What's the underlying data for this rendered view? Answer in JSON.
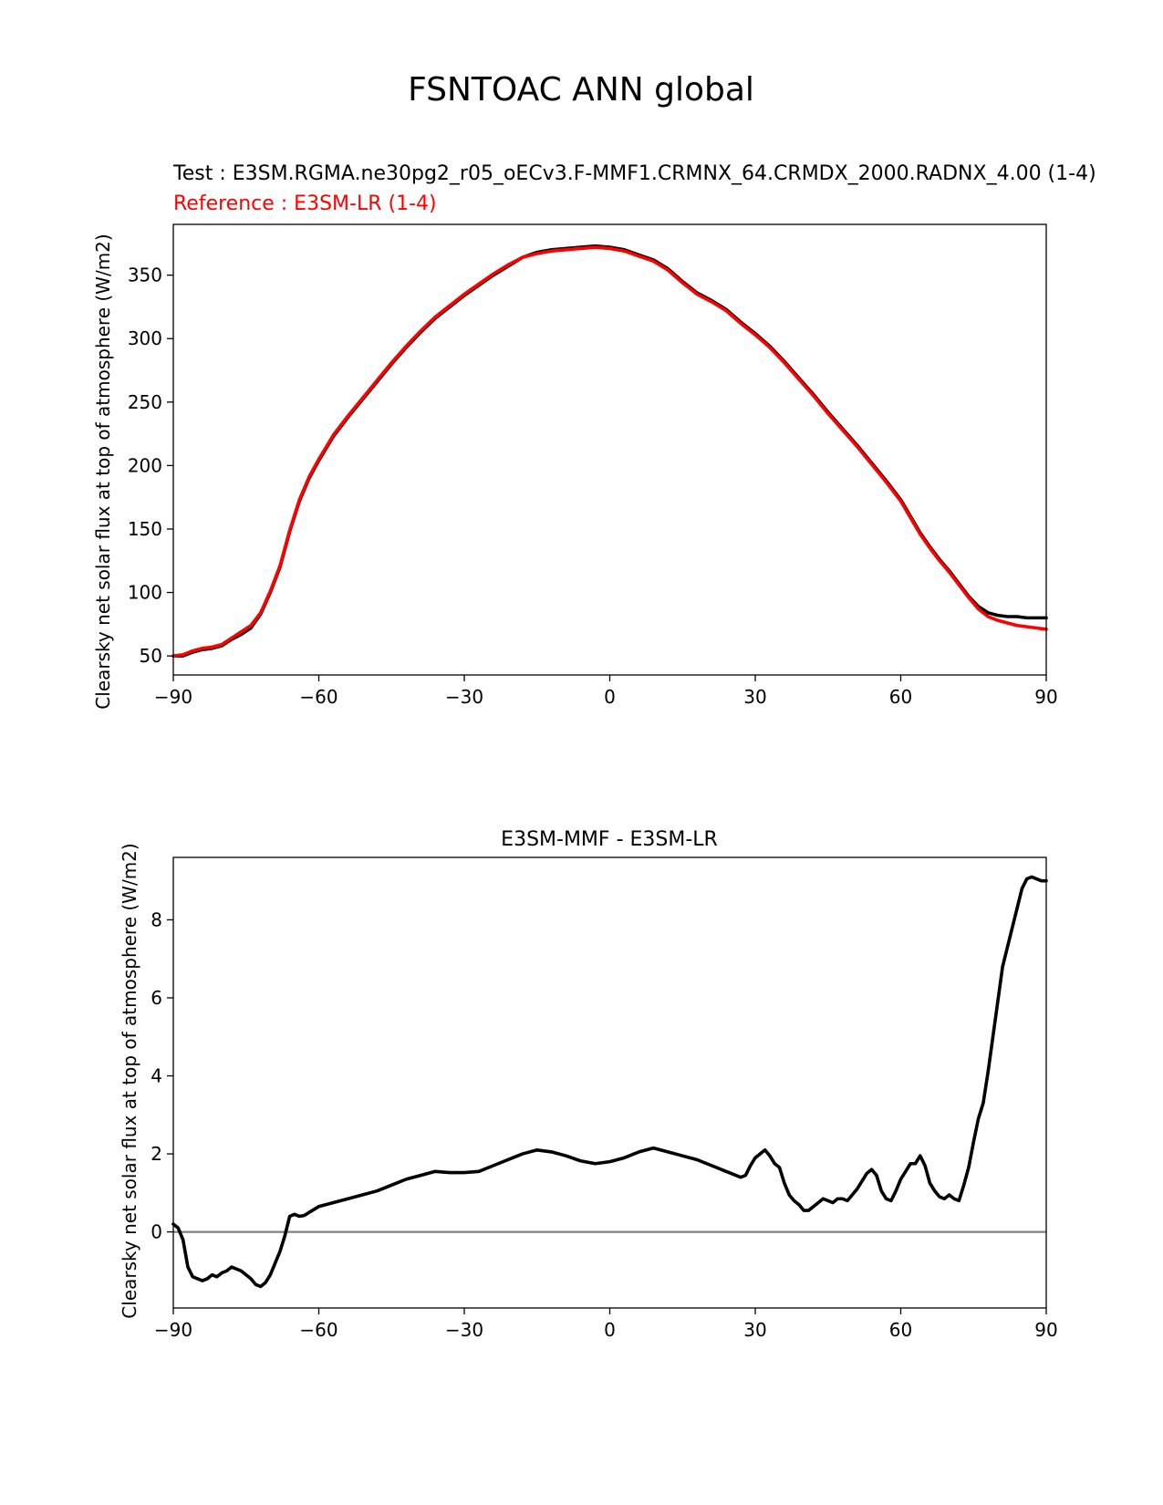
{
  "figure": {
    "title": "FSNTOAC ANN global"
  },
  "chart_data": [
    {
      "type": "line",
      "title_test": "Test : E3SM.RGMA.ne30pg2_r05_oECv3.F-MMF1.CRMNX_64.CRMDX_2000.RADNX_4.00 (1-4)",
      "title_reference": "Reference : E3SM-LR (1-4)",
      "xlabel": "",
      "ylabel": "Clearsky net solar flux at top of atmosphere (W/m2)",
      "xlim": [
        -90,
        90
      ],
      "ylim": [
        35,
        390
      ],
      "xticks": [
        -90,
        -60,
        -30,
        0,
        30,
        60,
        90
      ],
      "xtick_labels": [
        "−90",
        "−60",
        "−30",
        "0",
        "30",
        "60",
        "90"
      ],
      "yticks": [
        50,
        100,
        150,
        200,
        250,
        300,
        350
      ],
      "yticks_labels": [
        "50",
        "100",
        "150",
        "200",
        "250",
        "300",
        "350"
      ],
      "grid": false,
      "series": [
        {
          "role": "test",
          "color": "#000000",
          "x": [
            -90,
            -88,
            -86,
            -84,
            -82,
            -80,
            -78,
            -76,
            -74,
            -72,
            -70,
            -68,
            -66,
            -64,
            -62,
            -60,
            -57,
            -54,
            -51,
            -48,
            -45,
            -42,
            -39,
            -36,
            -33,
            -30,
            -27,
            -24,
            -21,
            -18,
            -15,
            -12,
            -9,
            -6,
            -3,
            0,
            3,
            6,
            9,
            12,
            15,
            18,
            21,
            24,
            27,
            30,
            33,
            36,
            39,
            42,
            45,
            48,
            51,
            54,
            57,
            60,
            62,
            64,
            66,
            68,
            70,
            72,
            74,
            76,
            78,
            80,
            82,
            84,
            86,
            88,
            90
          ],
          "y": [
            50,
            50,
            53,
            55,
            56,
            58,
            63,
            67,
            72,
            83,
            100,
            120,
            148,
            172,
            190,
            204,
            223,
            238,
            252,
            266,
            280,
            293,
            305,
            316,
            325,
            334,
            342,
            350,
            357,
            364,
            368,
            370,
            371,
            372,
            373,
            372,
            370,
            366,
            362,
            355,
            345,
            336,
            330,
            323,
            313,
            304,
            294,
            282,
            269,
            256,
            242,
            229,
            216,
            202,
            188,
            173,
            160,
            147,
            136,
            126,
            117,
            107,
            97,
            89,
            84,
            82,
            81,
            81,
            80,
            80,
            80
          ]
        },
        {
          "role": "reference",
          "color": "#ff0000",
          "x": [
            -90,
            -88,
            -86,
            -84,
            -82,
            -80,
            -78,
            -76,
            -74,
            -72,
            -70,
            -68,
            -66,
            -64,
            -62,
            -60,
            -57,
            -54,
            -51,
            -48,
            -45,
            -42,
            -39,
            -36,
            -33,
            -30,
            -27,
            -24,
            -21,
            -18,
            -15,
            -12,
            -9,
            -6,
            -3,
            0,
            3,
            6,
            9,
            12,
            15,
            18,
            21,
            24,
            27,
            30,
            33,
            36,
            39,
            42,
            45,
            48,
            51,
            54,
            57,
            60,
            62,
            64,
            66,
            68,
            70,
            72,
            74,
            76,
            78,
            80,
            82,
            84,
            86,
            88,
            90
          ],
          "y": [
            50,
            51,
            54,
            56,
            57,
            59,
            64,
            69,
            74,
            84,
            101,
            121,
            149,
            173,
            191,
            205,
            224,
            239,
            253,
            267,
            281,
            294,
            306,
            317,
            326,
            335,
            343,
            351,
            358,
            364,
            367,
            369,
            370,
            371,
            372,
            371,
            369,
            365,
            361,
            354,
            344,
            335,
            329,
            322,
            312,
            303,
            293,
            281,
            268,
            255,
            241,
            228,
            215,
            201,
            187,
            172,
            159,
            146,
            135,
            125,
            116,
            106,
            96,
            87,
            81,
            78,
            76,
            74,
            73,
            72,
            71
          ]
        }
      ]
    },
    {
      "type": "line",
      "title": "E3SM-MMF - E3SM-LR",
      "xlabel": "",
      "ylabel": "Clearsky net solar flux at top of atmosphere (W/m2)",
      "xlim": [
        -90,
        90
      ],
      "ylim": [
        -1.95,
        9.6
      ],
      "xticks": [
        -90,
        -60,
        -30,
        0,
        30,
        60,
        90
      ],
      "xtick_labels": [
        "−90",
        "−60",
        "−30",
        "0",
        "30",
        "60",
        "90"
      ],
      "yticks": [
        0,
        2,
        4,
        6,
        8
      ],
      "yticks_labels": [
        "0",
        "2",
        "4",
        "6",
        "8"
      ],
      "grid": false,
      "reference_line": {
        "y": 0,
        "color": "#808080"
      },
      "series": [
        {
          "role": "difference",
          "color": "#000000",
          "x": [
            -90,
            -89,
            -88,
            -87,
            -86,
            -85,
            -84,
            -83,
            -82,
            -81,
            -80,
            -79,
            -78,
            -77,
            -76,
            -75,
            -74,
            -73,
            -72,
            -71,
            -70,
            -69,
            -68,
            -67,
            -66,
            -65,
            -64,
            -63,
            -62,
            -60,
            -57,
            -54,
            -51,
            -48,
            -45,
            -42,
            -39,
            -36,
            -33,
            -30,
            -27,
            -24,
            -21,
            -18,
            -15,
            -12,
            -9,
            -6,
            -3,
            0,
            3,
            6,
            9,
            12,
            15,
            18,
            21,
            24,
            27,
            28,
            29,
            30,
            31,
            32,
            33,
            34,
            35,
            36,
            37,
            38,
            39,
            40,
            41,
            42,
            43,
            44,
            45,
            46,
            47,
            48,
            49,
            50,
            51,
            52,
            53,
            54,
            55,
            56,
            57,
            58,
            59,
            60,
            61,
            62,
            63,
            64,
            65,
            66,
            67,
            68,
            69,
            70,
            71,
            72,
            73,
            74,
            75,
            76,
            77,
            78,
            79,
            80,
            81,
            82,
            83,
            84,
            85,
            86,
            87,
            88,
            89,
            90
          ],
          "y": [
            0.2,
            0.1,
            -0.2,
            -0.9,
            -1.15,
            -1.2,
            -1.25,
            -1.2,
            -1.1,
            -1.15,
            -1.05,
            -1.0,
            -0.9,
            -0.95,
            -1.0,
            -1.1,
            -1.2,
            -1.35,
            -1.4,
            -1.3,
            -1.1,
            -0.8,
            -0.5,
            -0.1,
            0.4,
            0.45,
            0.4,
            0.42,
            0.5,
            0.65,
            0.75,
            0.85,
            0.95,
            1.05,
            1.2,
            1.35,
            1.45,
            1.55,
            1.52,
            1.52,
            1.55,
            1.7,
            1.85,
            2.0,
            2.1,
            2.05,
            1.95,
            1.82,
            1.75,
            1.8,
            1.9,
            2.05,
            2.15,
            2.05,
            1.95,
            1.85,
            1.7,
            1.55,
            1.4,
            1.45,
            1.7,
            1.9,
            2.0,
            2.1,
            1.95,
            1.75,
            1.65,
            1.25,
            0.95,
            0.8,
            0.7,
            0.55,
            0.55,
            0.65,
            0.75,
            0.85,
            0.8,
            0.75,
            0.85,
            0.85,
            0.8,
            0.95,
            1.1,
            1.3,
            1.5,
            1.6,
            1.45,
            1.05,
            0.85,
            0.8,
            1.05,
            1.35,
            1.55,
            1.75,
            1.75,
            1.95,
            1.7,
            1.25,
            1.05,
            0.9,
            0.85,
            0.95,
            0.85,
            0.8,
            1.2,
            1.65,
            2.3,
            2.9,
            3.3,
            4.1,
            5.0,
            5.9,
            6.8,
            7.3,
            7.8,
            8.3,
            8.8,
            9.05,
            9.1,
            9.05,
            9.0,
            9.0
          ]
        }
      ]
    }
  ]
}
